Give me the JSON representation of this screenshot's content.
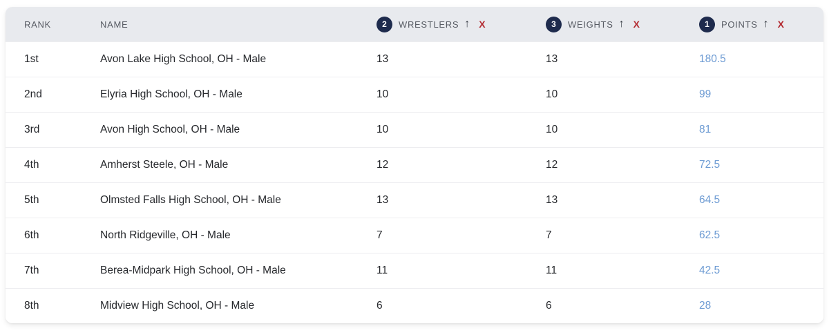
{
  "colors": {
    "header_bg": "#e8eaee",
    "badge_navy": "#1e2b4d",
    "sort_remove_red": "#b32b31",
    "points_blue": "#6d9bd3"
  },
  "icons": {
    "sort_asc": "↑",
    "remove": "X"
  },
  "table": {
    "columns": [
      {
        "key": "rank",
        "label": "RANK"
      },
      {
        "key": "name",
        "label": "NAME"
      },
      {
        "key": "wrestlers",
        "label": "WRESTLERS",
        "sort_order": "2",
        "sort_direction": "asc"
      },
      {
        "key": "weights",
        "label": "WEIGHTS",
        "sort_order": "3",
        "sort_direction": "asc"
      },
      {
        "key": "points",
        "label": "POINTS",
        "sort_order": "1",
        "sort_direction": "asc"
      }
    ],
    "rows": [
      {
        "rank": "1st",
        "name": "Avon Lake High School, OH - Male",
        "wrestlers": "13",
        "weights": "13",
        "points": "180.5"
      },
      {
        "rank": "2nd",
        "name": "Elyria High School, OH - Male",
        "wrestlers": "10",
        "weights": "10",
        "points": "99"
      },
      {
        "rank": "3rd",
        "name": "Avon High School, OH - Male",
        "wrestlers": "10",
        "weights": "10",
        "points": "81"
      },
      {
        "rank": "4th",
        "name": "Amherst Steele, OH - Male",
        "wrestlers": "12",
        "weights": "12",
        "points": "72.5"
      },
      {
        "rank": "5th",
        "name": "Olmsted Falls High School, OH - Male",
        "wrestlers": "13",
        "weights": "13",
        "points": "64.5"
      },
      {
        "rank": "6th",
        "name": "North Ridgeville, OH - Male",
        "wrestlers": "7",
        "weights": "7",
        "points": "62.5"
      },
      {
        "rank": "7th",
        "name": "Berea-Midpark High School, OH - Male",
        "wrestlers": "11",
        "weights": "11",
        "points": "42.5"
      },
      {
        "rank": "8th",
        "name": "Midview High School, OH - Male",
        "wrestlers": "6",
        "weights": "6",
        "points": "28"
      }
    ]
  }
}
